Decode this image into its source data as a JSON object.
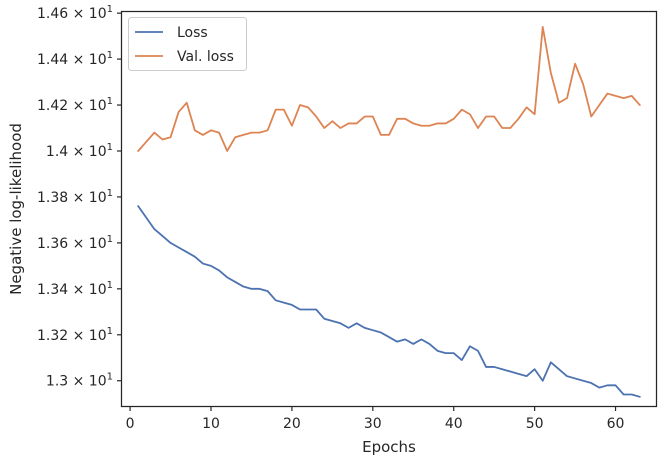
{
  "chart_data": {
    "type": "line",
    "xlabel": "Epochs",
    "ylabel": "Negative log-likelihood",
    "xlim": [
      -1,
      65
    ],
    "ylim": [
      12.89,
      14.605
    ],
    "x_ticks": [
      0,
      10,
      20,
      30,
      40,
      50,
      60
    ],
    "x_tick_labels": [
      "0",
      "10",
      "20",
      "30",
      "40",
      "50",
      "60"
    ],
    "y_ticks": [
      13.0,
      13.2,
      13.4,
      13.6,
      13.8,
      14.0,
      14.2,
      14.4,
      14.6
    ],
    "y_tick_labels": [
      {
        "mantissa": "1.3",
        "base": "10",
        "exp": "1"
      },
      {
        "mantissa": "1.32",
        "base": "10",
        "exp": "1"
      },
      {
        "mantissa": "1.34",
        "base": "10",
        "exp": "1"
      },
      {
        "mantissa": "1.36",
        "base": "10",
        "exp": "1"
      },
      {
        "mantissa": "1.38",
        "base": "10",
        "exp": "1"
      },
      {
        "mantissa": "1.4",
        "base": "10",
        "exp": "1"
      },
      {
        "mantissa": "1.42",
        "base": "10",
        "exp": "1"
      },
      {
        "mantissa": "1.44",
        "base": "10",
        "exp": "1"
      },
      {
        "mantissa": "1.46",
        "base": "10",
        "exp": "1"
      }
    ],
    "grid": false,
    "legend_position": "upper-left",
    "x": [
      1,
      2,
      3,
      4,
      5,
      6,
      7,
      8,
      9,
      10,
      11,
      12,
      13,
      14,
      15,
      16,
      17,
      18,
      19,
      20,
      21,
      22,
      23,
      24,
      25,
      26,
      27,
      28,
      29,
      30,
      31,
      32,
      33,
      34,
      35,
      36,
      37,
      38,
      39,
      40,
      41,
      42,
      43,
      44,
      45,
      46,
      47,
      48,
      49,
      50,
      51,
      52,
      53,
      54,
      55,
      56,
      57,
      58,
      59,
      60,
      61,
      62,
      63
    ],
    "series": [
      {
        "name": "Loss",
        "color": "#4c72b0",
        "values": [
          13.76,
          13.71,
          13.66,
          13.63,
          13.6,
          13.58,
          13.56,
          13.54,
          13.51,
          13.5,
          13.48,
          13.45,
          13.43,
          13.41,
          13.4,
          13.4,
          13.39,
          13.35,
          13.34,
          13.33,
          13.31,
          13.31,
          13.31,
          13.27,
          13.26,
          13.25,
          13.23,
          13.25,
          13.23,
          13.22,
          13.21,
          13.19,
          13.17,
          13.18,
          13.16,
          13.18,
          13.16,
          13.13,
          13.12,
          13.12,
          13.09,
          13.15,
          13.13,
          13.06,
          13.06,
          13.05,
          13.04,
          13.03,
          13.02,
          13.05,
          13.0,
          13.08,
          13.05,
          13.02,
          13.01,
          13.0,
          12.99,
          12.97,
          12.98,
          12.98,
          12.94,
          12.94,
          12.93
        ]
      },
      {
        "name": "Val. loss",
        "color": "#dd8452",
        "values": [
          14.0,
          14.04,
          14.08,
          14.05,
          14.06,
          14.17,
          14.21,
          14.09,
          14.07,
          14.09,
          14.08,
          14.0,
          14.06,
          14.07,
          14.08,
          14.08,
          14.09,
          14.18,
          14.18,
          14.11,
          14.2,
          14.19,
          14.15,
          14.1,
          14.13,
          14.1,
          14.12,
          14.12,
          14.15,
          14.15,
          14.07,
          14.07,
          14.14,
          14.14,
          14.12,
          14.11,
          14.11,
          14.12,
          14.12,
          14.14,
          14.18,
          14.16,
          14.1,
          14.15,
          14.15,
          14.1,
          14.1,
          14.14,
          14.19,
          14.16,
          14.54,
          14.34,
          14.21,
          14.23,
          14.38,
          14.29,
          14.15,
          14.2,
          14.25,
          14.24,
          14.23,
          14.24,
          14.2
        ]
      }
    ]
  }
}
